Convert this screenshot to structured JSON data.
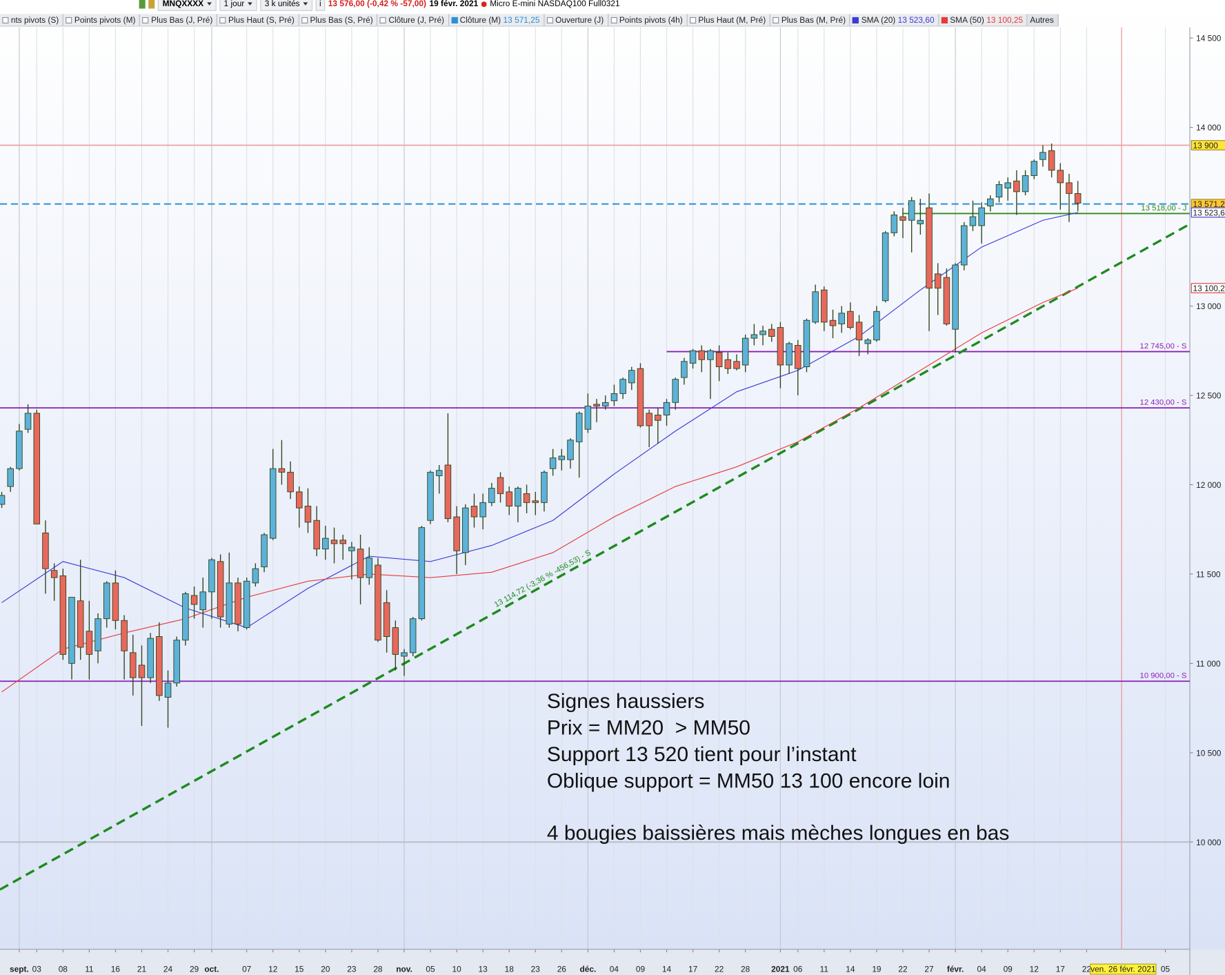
{
  "toolbar": {
    "symbol": "MNQXXXX",
    "period": "1 jour",
    "quantity": "3 k unités",
    "quote": "13 576,00 (-0,42 % -57,00)",
    "date": "19 févr. 2021",
    "instrument": "Micro E-mini NASDAQ100 Full0321",
    "indicators": [
      {
        "name": "nts pivots (S)"
      },
      {
        "name": "Points pivots (M)"
      },
      {
        "name": "Plus Bas (J, Pré)"
      },
      {
        "name": "Plus Haut (S, Pré)"
      },
      {
        "name": "Plus Bas (S, Pré)"
      },
      {
        "name": "Clôture (J, Pré)"
      },
      {
        "name": "Clôture (M)",
        "value": "13 571,25",
        "color": "#2a8fd6"
      },
      {
        "name": "Ouverture (J)"
      },
      {
        "name": "Points pivots (4h)"
      },
      {
        "name": "Plus Haut (M, Pré)"
      },
      {
        "name": "Plus Bas (M, Pré)"
      }
    ],
    "more": "Autres"
  },
  "chart_data": {
    "type": "candlestick",
    "up_color": "#5cb2da",
    "down_color": "#e8685e",
    "wick_color": "#2e4418",
    "grid": true,
    "xlim": [
      -2.2,
      133.8
    ],
    "ylim": [
      9400,
      14560
    ],
    "xticks": [
      {
        "value": 0,
        "label": "sept.",
        "bold": true
      },
      {
        "value": 2,
        "label": "03"
      },
      {
        "value": 5,
        "label": "08"
      },
      {
        "value": 8,
        "label": "11"
      },
      {
        "value": 11,
        "label": "16"
      },
      {
        "value": 14,
        "label": "21"
      },
      {
        "value": 17,
        "label": "24"
      },
      {
        "value": 20,
        "label": "29"
      },
      {
        "value": 22,
        "label": "oct.",
        "bold": true
      },
      {
        "value": 26,
        "label": "07"
      },
      {
        "value": 29,
        "label": "12"
      },
      {
        "value": 32,
        "label": "15"
      },
      {
        "value": 35,
        "label": "20"
      },
      {
        "value": 38,
        "label": "23"
      },
      {
        "value": 41,
        "label": "28"
      },
      {
        "value": 44,
        "label": "nov.",
        "bold": true
      },
      {
        "value": 47,
        "label": "05"
      },
      {
        "value": 50,
        "label": "10"
      },
      {
        "value": 53,
        "label": "13"
      },
      {
        "value": 56,
        "label": "18"
      },
      {
        "value": 59,
        "label": "23"
      },
      {
        "value": 62,
        "label": "26"
      },
      {
        "value": 65,
        "label": "déc.",
        "bold": true
      },
      {
        "value": 68,
        "label": "04"
      },
      {
        "value": 71,
        "label": "09"
      },
      {
        "value": 74,
        "label": "14"
      },
      {
        "value": 77,
        "label": "17"
      },
      {
        "value": 80,
        "label": "22"
      },
      {
        "value": 83,
        "label": "28"
      },
      {
        "value": 87,
        "label": "2021",
        "bold": true
      },
      {
        "value": 89,
        "label": "06"
      },
      {
        "value": 92,
        "label": "11"
      },
      {
        "value": 95,
        "label": "14"
      },
      {
        "value": 98,
        "label": "19"
      },
      {
        "value": 101,
        "label": "22"
      },
      {
        "value": 104,
        "label": "27"
      },
      {
        "value": 107,
        "label": "févr.",
        "bold": true
      },
      {
        "value": 110,
        "label": "04"
      },
      {
        "value": 113,
        "label": "09"
      },
      {
        "value": 116,
        "label": "12"
      },
      {
        "value": 119,
        "label": "17"
      },
      {
        "value": 122,
        "label": "22"
      },
      {
        "value": 131,
        "label": "05"
      }
    ],
    "yticks": [
      {
        "value": 10000,
        "label": "10 000"
      },
      {
        "value": 10500,
        "label": "10 500"
      },
      {
        "value": 11000,
        "label": "11 000"
      },
      {
        "value": 11500,
        "label": "11 500"
      },
      {
        "value": 12000,
        "label": "12 000"
      },
      {
        "value": 12500,
        "label": "12 500"
      },
      {
        "value": 13000,
        "label": "13 000"
      },
      {
        "value": 14000,
        "label": "14 000"
      },
      {
        "value": 14500,
        "label": "14 500"
      }
    ],
    "x": [
      -2,
      -1,
      0,
      1,
      2,
      3,
      4,
      5,
      6,
      7,
      8,
      9,
      10,
      11,
      12,
      13,
      14,
      15,
      16,
      17,
      18,
      19,
      20,
      21,
      22,
      23,
      24,
      25,
      26,
      27,
      28,
      29,
      30,
      31,
      32,
      33,
      34,
      35,
      36,
      37,
      38,
      39,
      40,
      41,
      42,
      43,
      44,
      45,
      46,
      47,
      48,
      49,
      50,
      51,
      52,
      53,
      54,
      55,
      56,
      57,
      58,
      59,
      60,
      61,
      62,
      63,
      64,
      65,
      66,
      67,
      68,
      69,
      70,
      71,
      72,
      73,
      74,
      75,
      76,
      77,
      78,
      79,
      80,
      81,
      82,
      83,
      84,
      85,
      86,
      87,
      88,
      89,
      90,
      91,
      92,
      93,
      94,
      95,
      96,
      97,
      98,
      99,
      100,
      101,
      102,
      103,
      104,
      105,
      106,
      107,
      108,
      109,
      110,
      111,
      112,
      113,
      114,
      115,
      116,
      117,
      118,
      119,
      120,
      121
    ],
    "ohlc": [
      [
        11890,
        11960,
        11870,
        11940
      ],
      [
        11990,
        12100,
        11960,
        12090
      ],
      [
        12090,
        12340,
        12080,
        12300
      ],
      [
        12310,
        12450,
        12290,
        12400
      ],
      [
        12400,
        12420,
        11780,
        11780
      ],
      [
        11730,
        11800,
        11390,
        11530
      ],
      [
        11520,
        11560,
        11350,
        11480
      ],
      [
        11490,
        11530,
        11020,
        11050
      ],
      [
        11000,
        11370,
        10910,
        11370
      ],
      [
        11350,
        11580,
        11020,
        11090
      ],
      [
        11180,
        11350,
        10910,
        11050
      ],
      [
        11070,
        11280,
        11000,
        11250
      ],
      [
        11250,
        11460,
        11200,
        11450
      ],
      [
        11450,
        11520,
        11190,
        11240
      ],
      [
        11240,
        11270,
        10910,
        11070
      ],
      [
        11060,
        11160,
        10820,
        10920
      ],
      [
        10990,
        11100,
        10650,
        10920
      ],
      [
        10920,
        11170,
        10890,
        11140
      ],
      [
        11150,
        11230,
        10790,
        10820
      ],
      [
        10810,
        10960,
        10640,
        10890
      ],
      [
        10890,
        11150,
        10870,
        11130
      ],
      [
        11130,
        11400,
        11100,
        11390
      ],
      [
        11380,
        11430,
        11250,
        11330
      ],
      [
        11300,
        11480,
        11200,
        11400
      ],
      [
        11400,
        11590,
        11250,
        11580
      ],
      [
        11570,
        11610,
        11200,
        11260
      ],
      [
        11220,
        11620,
        11200,
        11450
      ],
      [
        11450,
        11480,
        11180,
        11220
      ],
      [
        11200,
        11480,
        11190,
        11460
      ],
      [
        11450,
        11560,
        11430,
        11530
      ],
      [
        11540,
        11730,
        11510,
        11720
      ],
      [
        11700,
        12200,
        11690,
        12090
      ],
      [
        12090,
        12250,
        12000,
        12070
      ],
      [
        12070,
        12130,
        11920,
        11960
      ],
      [
        11960,
        11990,
        11760,
        11870
      ],
      [
        11880,
        11980,
        11730,
        11790
      ],
      [
        11800,
        11880,
        11600,
        11640
      ],
      [
        11640,
        11770,
        11580,
        11700
      ],
      [
        11690,
        11760,
        11560,
        11670
      ],
      [
        11690,
        11720,
        11580,
        11670
      ],
      [
        11630,
        11680,
        11470,
        11650
      ],
      [
        11640,
        11720,
        11330,
        11480
      ],
      [
        11480,
        11650,
        11440,
        11590
      ],
      [
        11550,
        11590,
        11120,
        11130
      ],
      [
        11340,
        11410,
        11060,
        11150
      ],
      [
        11200,
        11240,
        10960,
        11050
      ],
      [
        11040,
        11080,
        10930,
        11060
      ],
      [
        11060,
        11260,
        11040,
        11250
      ],
      [
        11250,
        11770,
        11240,
        11760
      ],
      [
        11800,
        12080,
        11780,
        12070
      ],
      [
        12050,
        12110,
        11950,
        12080
      ],
      [
        12110,
        12400,
        11790,
        11810
      ],
      [
        11820,
        11880,
        11500,
        11630
      ],
      [
        11620,
        11890,
        11550,
        11870
      ],
      [
        11880,
        11950,
        11760,
        11820
      ],
      [
        11820,
        11950,
        11750,
        11900
      ],
      [
        11900,
        12010,
        11880,
        11980
      ],
      [
        12040,
        12070,
        11900,
        11950
      ],
      [
        11960,
        11990,
        11830,
        11880
      ],
      [
        11880,
        11990,
        11790,
        11980
      ],
      [
        11950,
        12000,
        11840,
        11900
      ],
      [
        11910,
        11960,
        11830,
        11900
      ],
      [
        11900,
        12080,
        11850,
        12070
      ],
      [
        12090,
        12200,
        12050,
        12150
      ],
      [
        12140,
        12200,
        12080,
        12160
      ],
      [
        12140,
        12260,
        12090,
        12250
      ],
      [
        12240,
        12410,
        12040,
        12400
      ],
      [
        12310,
        12510,
        12290,
        12440
      ],
      [
        12450,
        12480,
        12350,
        12440
      ],
      [
        12440,
        12500,
        12420,
        12460
      ],
      [
        12470,
        12560,
        12440,
        12510
      ],
      [
        12510,
        12600,
        12480,
        12590
      ],
      [
        12570,
        12660,
        12530,
        12640
      ],
      [
        12650,
        12680,
        12320,
        12330
      ],
      [
        12400,
        12420,
        12210,
        12330
      ],
      [
        12390,
        12430,
        12230,
        12360
      ],
      [
        12390,
        12480,
        12330,
        12460
      ],
      [
        12460,
        12600,
        12420,
        12590
      ],
      [
        12600,
        12710,
        12560,
        12690
      ],
      [
        12680,
        12760,
        12650,
        12750
      ],
      [
        12750,
        12780,
        12630,
        12700
      ],
      [
        12700,
        12760,
        12480,
        12750
      ],
      [
        12740,
        12780,
        12580,
        12660
      ],
      [
        12700,
        12740,
        12620,
        12650
      ],
      [
        12690,
        12730,
        12640,
        12650
      ],
      [
        12670,
        12840,
        12630,
        12820
      ],
      [
        12820,
        12900,
        12780,
        12840
      ],
      [
        12840,
        12890,
        12780,
        12860
      ],
      [
        12870,
        12900,
        12800,
        12830
      ],
      [
        12880,
        12910,
        12540,
        12670
      ],
      [
        12670,
        12800,
        12620,
        12790
      ],
      [
        12780,
        12810,
        12500,
        12650
      ],
      [
        12660,
        12930,
        12630,
        12920
      ],
      [
        12910,
        13120,
        12900,
        13080
      ],
      [
        13090,
        13110,
        12860,
        12910
      ],
      [
        12920,
        12980,
        12820,
        12890
      ],
      [
        12900,
        13000,
        12850,
        12960
      ],
      [
        12970,
        13020,
        12870,
        12880
      ],
      [
        12910,
        12950,
        12720,
        12810
      ],
      [
        12790,
        12820,
        12730,
        12810
      ],
      [
        12810,
        13000,
        12800,
        12970
      ],
      [
        13030,
        13420,
        13020,
        13410
      ],
      [
        13410,
        13530,
        13390,
        13510
      ],
      [
        13500,
        13550,
        13380,
        13480
      ],
      [
        13480,
        13610,
        13300,
        13590
      ],
      [
        13460,
        13600,
        13400,
        13480
      ],
      [
        13550,
        13630,
        12860,
        13100
      ],
      [
        13180,
        13240,
        12950,
        13100
      ],
      [
        13160,
        13210,
        12890,
        12900
      ],
      [
        12870,
        13240,
        12740,
        13230
      ],
      [
        13230,
        13470,
        13200,
        13450
      ],
      [
        13450,
        13590,
        13420,
        13500
      ],
      [
        13450,
        13580,
        13350,
        13550
      ],
      [
        13560,
        13620,
        13530,
        13600
      ],
      [
        13610,
        13700,
        13580,
        13680
      ],
      [
        13660,
        13720,
        13590,
        13690
      ],
      [
        13700,
        13760,
        13510,
        13640
      ],
      [
        13640,
        13760,
        13620,
        13730
      ],
      [
        13730,
        13820,
        13710,
        13810
      ],
      [
        13820,
        13900,
        13780,
        13860
      ],
      [
        13870,
        13910,
        13720,
        13760
      ],
      [
        13760,
        13800,
        13540,
        13690
      ],
      [
        13690,
        13740,
        13470,
        13630
      ],
      [
        13630,
        13700,
        13530,
        13576
      ]
    ],
    "series": [
      {
        "name": "SMA (20)",
        "color": "#3b3bd6",
        "last_label": "13 523,60",
        "x": [
          -2,
          5,
          12,
          19,
          26,
          33,
          40,
          47,
          54,
          61,
          68,
          75,
          82,
          89,
          96,
          103,
          110,
          117,
          121
        ],
        "values": [
          11340,
          11570,
          11480,
          11310,
          11200,
          11420,
          11600,
          11570,
          11660,
          11800,
          12060,
          12300,
          12520,
          12640,
          12830,
          13090,
          13330,
          13480,
          13523.6
        ]
      },
      {
        "name": "SMA (50)",
        "color": "#e83a3a",
        "last_label": "13 100,25",
        "x": [
          -2,
          5,
          12,
          19,
          26,
          33,
          40,
          47,
          54,
          61,
          68,
          75,
          82,
          89,
          96,
          103,
          110,
          117,
          121
        ],
        "values": [
          10840,
          11080,
          11170,
          11250,
          11370,
          11460,
          11500,
          11480,
          11510,
          11620,
          11820,
          11990,
          12100,
          12240,
          12430,
          12640,
          12850,
          13020,
          13100.25
        ]
      }
    ],
    "levels": [
      {
        "value": 13900,
        "label": "13 900",
        "color": "#f0a0a0",
        "style": "solid",
        "label_position": "axis",
        "box": "#ffe43a"
      },
      {
        "value": 13571.25,
        "label": "13 571,25",
        "color": "#2a8fd6",
        "style": "dashed",
        "label_position": "axis",
        "box": "#ffc832"
      },
      {
        "value": 13518,
        "label": "13 518,00 - J",
        "color": "#2f8a1c",
        "style": "solid",
        "label_position": "line",
        "x_start": 101
      },
      {
        "value": 12745,
        "label": "12 745,00 - S",
        "color": "#8a1fb5",
        "style": "solid",
        "label_position": "line",
        "x_start": 74
      },
      {
        "value": 12430,
        "label": "12 430,00 - S",
        "color": "#8a1fb5",
        "style": "solid",
        "label_position": "line"
      },
      {
        "value": 10900,
        "label": "10 900,00 - S",
        "color": "#8a1fb5",
        "style": "solid",
        "label_position": "line"
      },
      {
        "value": 10000,
        "color": "#b8bcc4",
        "style": "solid"
      }
    ],
    "trendline": {
      "x": [
        -2.2,
        133.8
      ],
      "values": [
        9734,
        13459
      ],
      "color": "#1e8a1e",
      "label": "13 114,72 (-3,36 % -456,53) - S"
    },
    "cursor": {
      "x": 126,
      "label": "ven. 26 févr. 2021",
      "color": "#f08a8a"
    },
    "annotation": [
      [
        "Signes haussiers",
        "Prix = MM20  > MM50",
        "Support 13 520 tient pour l’instant",
        "Oblique support = MM50 13 100 encore loin"
      ],
      [
        "4 bougies baissières mais mèches longues en bas"
      ]
    ]
  }
}
